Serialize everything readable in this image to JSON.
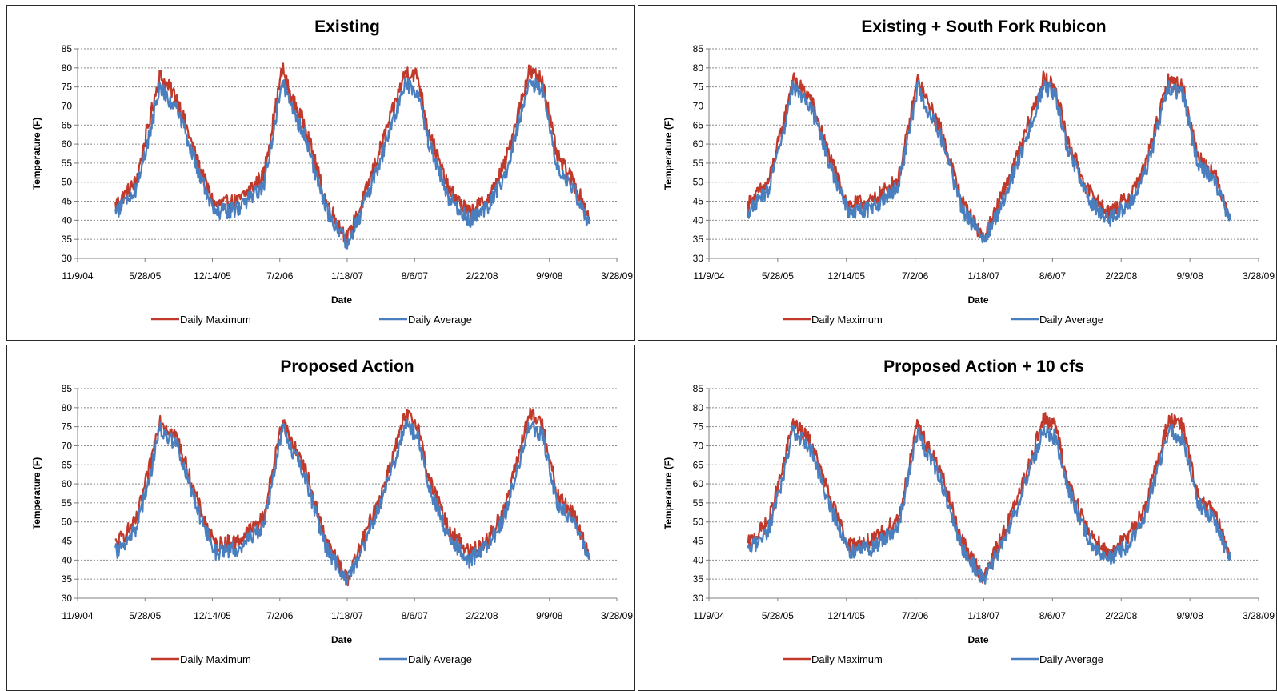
{
  "chart_data": [
    {
      "type": "line",
      "title": "Existing",
      "xlabel": "Date",
      "ylabel": "Temperature (F)",
      "ylim": [
        30,
        85
      ],
      "yticks": [
        "30",
        "35",
        "40",
        "45",
        "50",
        "55",
        "60",
        "65",
        "70",
        "75",
        "80",
        "85"
      ],
      "xticks": [
        "11/9/04",
        "5/28/05",
        "12/14/05",
        "7/2/06",
        "1/18/07",
        "8/6/07",
        "2/22/08",
        "9/9/08",
        "3/28/09"
      ],
      "grid": "horizontal-dashed",
      "legend": "bottom",
      "series": [
        {
          "name": "Daily Maximum",
          "color": "#c0392b",
          "x": [
            "3/1/05",
            "5/1/05",
            "6/15/05",
            "7/10/05",
            "9/1/05",
            "11/1/05",
            "12/20/05",
            "3/1/06",
            "5/15/06",
            "7/10/06",
            "8/1/06",
            "9/15/06",
            "11/15/06",
            "1/18/07",
            "3/1/07",
            "5/1/07",
            "7/10/07",
            "8/15/07",
            "9/15/07",
            "11/15/07",
            "1/15/08",
            "3/15/08",
            "5/1/08",
            "7/10/08",
            "8/20/08",
            "10/1/08",
            "11/20/08",
            "1/5/09"
          ],
          "y": [
            44,
            50,
            68,
            78,
            72,
            55,
            44,
            45,
            52,
            80,
            73,
            65,
            45,
            35,
            44,
            60,
            79,
            78,
            64,
            48,
            42,
            46,
            55,
            79,
            77,
            57,
            50,
            41
          ]
        },
        {
          "name": "Daily Average",
          "color": "#4a7fbf",
          "x": [
            "3/1/05",
            "5/1/05",
            "6/15/05",
            "7/10/05",
            "9/1/05",
            "11/1/05",
            "12/20/05",
            "3/1/06",
            "5/15/06",
            "7/10/06",
            "8/1/06",
            "9/15/06",
            "11/15/06",
            "1/18/07",
            "3/1/07",
            "5/1/07",
            "7/10/07",
            "8/15/07",
            "9/15/07",
            "11/15/07",
            "1/15/08",
            "3/15/08",
            "5/1/08",
            "7/10/08",
            "8/20/08",
            "10/1/08",
            "11/20/08",
            "1/5/09"
          ],
          "y": [
            42,
            48,
            64,
            75,
            69,
            53,
            42,
            43,
            49,
            77,
            70,
            62,
            43,
            34,
            42,
            57,
            76,
            74,
            61,
            46,
            40,
            44,
            52,
            76,
            74,
            54,
            48,
            39
          ]
        }
      ]
    },
    {
      "type": "line",
      "title": "Existing + South Fork Rubicon",
      "xlabel": "Date",
      "ylabel": "Temperature (F)",
      "ylim": [
        30,
        85
      ],
      "yticks": [
        "30",
        "35",
        "40",
        "45",
        "50",
        "55",
        "60",
        "65",
        "70",
        "75",
        "80",
        "85"
      ],
      "xticks": [
        "11/9/04",
        "5/28/05",
        "12/14/05",
        "7/2/06",
        "1/18/07",
        "8/6/07",
        "2/22/08",
        "9/9/08",
        "3/28/09"
      ],
      "grid": "horizontal-dashed",
      "legend": "bottom",
      "series": [
        {
          "name": "Daily Maximum",
          "color": "#c0392b",
          "x": [
            "3/1/05",
            "5/1/05",
            "6/15/05",
            "7/10/05",
            "9/1/05",
            "11/1/05",
            "12/20/05",
            "3/1/06",
            "5/15/06",
            "7/10/06",
            "8/1/06",
            "9/15/06",
            "11/15/06",
            "1/18/07",
            "3/1/07",
            "5/1/07",
            "7/10/07",
            "8/15/07",
            "9/15/07",
            "11/15/07",
            "1/15/08",
            "3/15/08",
            "5/1/08",
            "7/10/08",
            "8/20/08",
            "10/1/08",
            "11/20/08",
            "1/5/09"
          ],
          "y": [
            44,
            50,
            66,
            77,
            72,
            55,
            44,
            45,
            51,
            77,
            72,
            64,
            45,
            35,
            44,
            58,
            77,
            75,
            62,
            48,
            42,
            46,
            54,
            77,
            75,
            57,
            52,
            41
          ]
        },
        {
          "name": "Daily Average",
          "color": "#4a7fbf",
          "x": [
            "3/1/05",
            "5/1/05",
            "6/15/05",
            "7/10/05",
            "9/1/05",
            "11/1/05",
            "12/20/05",
            "3/1/06",
            "5/15/06",
            "7/10/06",
            "8/1/06",
            "9/15/06",
            "11/15/06",
            "1/18/07",
            "3/1/07",
            "5/1/07",
            "7/10/07",
            "8/15/07",
            "9/15/07",
            "11/15/07",
            "1/15/08",
            "3/15/08",
            "5/1/08",
            "7/10/08",
            "8/20/08",
            "10/1/08",
            "11/20/08",
            "1/5/09"
          ],
          "y": [
            42,
            48,
            63,
            75,
            70,
            53,
            42,
            43,
            49,
            75,
            70,
            62,
            43,
            35,
            42,
            56,
            75,
            73,
            60,
            46,
            40,
            44,
            52,
            75,
            73,
            55,
            50,
            40
          ]
        }
      ]
    },
    {
      "type": "line",
      "title": "Proposed Action",
      "xlabel": "Date",
      "ylabel": "Temperature (F)",
      "ylim": [
        30,
        85
      ],
      "yticks": [
        "30",
        "35",
        "40",
        "45",
        "50",
        "55",
        "60",
        "65",
        "70",
        "75",
        "80",
        "85"
      ],
      "xticks": [
        "11/9/04",
        "5/28/05",
        "12/14/05",
        "7/2/06",
        "1/18/07",
        "8/6/07",
        "2/22/08",
        "9/9/08",
        "3/28/09"
      ],
      "grid": "horizontal-dashed",
      "legend": "bottom",
      "series": [
        {
          "name": "Daily Maximum",
          "color": "#c0392b",
          "x": [
            "3/1/05",
            "5/1/05",
            "6/15/05",
            "7/10/05",
            "9/1/05",
            "11/1/05",
            "12/20/05",
            "3/1/06",
            "5/15/06",
            "7/10/06",
            "8/1/06",
            "9/15/06",
            "11/15/06",
            "1/18/07",
            "3/1/07",
            "5/1/07",
            "7/10/07",
            "8/15/07",
            "9/15/07",
            "11/15/07",
            "1/15/08",
            "3/15/08",
            "5/1/08",
            "7/10/08",
            "8/20/08",
            "10/1/08",
            "11/20/08",
            "1/5/09"
          ],
          "y": [
            44,
            50,
            66,
            77,
            72,
            55,
            44,
            45,
            51,
            77,
            72,
            64,
            45,
            35,
            44,
            58,
            78,
            76,
            62,
            48,
            42,
            46,
            54,
            78,
            76,
            57,
            52,
            41
          ]
        },
        {
          "name": "Daily Average",
          "color": "#4a7fbf",
          "x": [
            "3/1/05",
            "5/1/05",
            "6/15/05",
            "7/10/05",
            "9/1/05",
            "11/1/05",
            "12/20/05",
            "3/1/06",
            "5/15/06",
            "7/10/06",
            "8/1/06",
            "9/15/06",
            "11/15/06",
            "1/18/07",
            "3/1/07",
            "5/1/07",
            "7/10/07",
            "8/15/07",
            "9/15/07",
            "11/15/07",
            "1/15/08",
            "3/15/08",
            "5/1/08",
            "7/10/08",
            "8/20/08",
            "10/1/08",
            "11/20/08",
            "1/5/09"
          ],
          "y": [
            42,
            48,
            63,
            75,
            70,
            53,
            42,
            43,
            49,
            75,
            70,
            62,
            43,
            35,
            42,
            56,
            75,
            73,
            60,
            46,
            40,
            44,
            52,
            75,
            73,
            55,
            50,
            40
          ]
        }
      ]
    },
    {
      "type": "line",
      "title": "Proposed Action + 10 cfs",
      "xlabel": "Date",
      "ylabel": "Temperature (F)",
      "ylim": [
        30,
        85
      ],
      "yticks": [
        "30",
        "35",
        "40",
        "45",
        "50",
        "55",
        "60",
        "65",
        "70",
        "75",
        "80",
        "85"
      ],
      "xticks": [
        "11/9/04",
        "5/28/05",
        "12/14/05",
        "7/2/06",
        "1/18/07",
        "8/6/07",
        "2/22/08",
        "9/9/08",
        "3/28/09"
      ],
      "grid": "horizontal-dashed",
      "legend": "bottom",
      "series": [
        {
          "name": "Daily Maximum",
          "color": "#c0392b",
          "x": [
            "3/1/05",
            "5/1/05",
            "6/15/05",
            "7/10/05",
            "9/1/05",
            "11/1/05",
            "12/20/05",
            "3/1/06",
            "5/15/06",
            "7/10/06",
            "8/1/06",
            "9/15/06",
            "11/15/06",
            "1/18/07",
            "3/1/07",
            "5/1/07",
            "7/10/07",
            "8/15/07",
            "9/15/07",
            "11/15/07",
            "1/15/08",
            "3/15/08",
            "5/1/08",
            "7/10/08",
            "8/20/08",
            "10/1/08",
            "11/20/08",
            "1/5/09"
          ],
          "y": [
            44,
            50,
            65,
            76,
            71,
            55,
            44,
            45,
            51,
            76,
            71,
            63,
            45,
            35,
            44,
            57,
            77,
            75,
            62,
            48,
            42,
            46,
            54,
            77,
            75,
            57,
            52,
            41
          ]
        },
        {
          "name": "Daily Average",
          "color": "#4a7fbf",
          "x": [
            "3/1/05",
            "5/1/05",
            "6/15/05",
            "7/10/05",
            "9/1/05",
            "11/1/05",
            "12/20/05",
            "3/1/06",
            "5/15/06",
            "7/10/06",
            "8/1/06",
            "9/15/06",
            "11/15/06",
            "1/18/07",
            "3/1/07",
            "5/1/07",
            "7/10/07",
            "8/15/07",
            "9/15/07",
            "11/15/07",
            "1/15/08",
            "3/15/08",
            "5/1/08",
            "7/10/08",
            "8/20/08",
            "10/1/08",
            "11/20/08",
            "1/5/09"
          ],
          "y": [
            42,
            48,
            62,
            74,
            69,
            53,
            42,
            43,
            49,
            74,
            69,
            61,
            43,
            35,
            42,
            55,
            74,
            72,
            60,
            46,
            40,
            44,
            52,
            74,
            72,
            55,
            50,
            40
          ]
        }
      ]
    }
  ]
}
